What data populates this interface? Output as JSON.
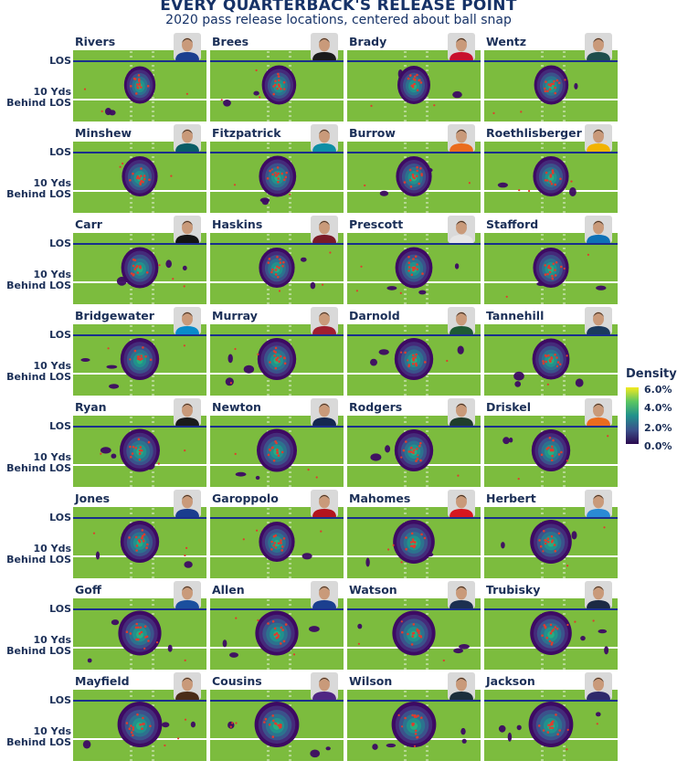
{
  "title": "EVERY QUARTERBACK'S RELEASE POINT",
  "subtitle": "2020 pass release locations, centered about ball snap",
  "row_labels": {
    "los": "LOS",
    "ten_yds_line1": "10 Yds",
    "ten_yds_line2": "Behind LOS"
  },
  "legend": {
    "title": "Density",
    "ticks": [
      "6.0%",
      "4.0%",
      "2.0%",
      "0.0%"
    ]
  },
  "colors": {
    "field": "#7cbc3e",
    "los_line": "#1a2f8c",
    "ten_line": "#ffffff",
    "density_low": "#3d0a63",
    "density_mid": "#21918c",
    "density_high": "#f3e91f",
    "points": "#e03b2e"
  },
  "chart_data": {
    "type": "density_small_multiples",
    "title": "EVERY QUARTERBACK'S RELEASE POINT",
    "subtitle": "2020 pass release locations, centered about ball snap",
    "y_reference_lines": [
      "LOS",
      "10 Yds Behind LOS"
    ],
    "legend_range_percent": [
      0.0,
      6.0
    ],
    "players": [
      {
        "name": "Rivers",
        "jersey": "#1b3f8f",
        "spread": 0.45,
        "offset": 0
      },
      {
        "name": "Brees",
        "jersey": "#1b1b1b",
        "spread": 0.55,
        "offset": 0.6
      },
      {
        "name": "Brady",
        "jersey": "#c8102e",
        "spread": 0.5,
        "offset": 0
      },
      {
        "name": "Wentz",
        "jersey": "#1f4e4c",
        "spread": 0.55,
        "offset": 0.1
      },
      {
        "name": "Minshew",
        "jersey": "#0a5c66",
        "spread": 0.6,
        "offset": 0
      },
      {
        "name": "Fitzpatrick",
        "jersey": "#0e8ea5",
        "spread": 0.65,
        "offset": 0.2
      },
      {
        "name": "Burrow",
        "jersey": "#ea6c1e",
        "spread": 0.6,
        "offset": 0
      },
      {
        "name": "Roethlisberger",
        "jersey": "#f2b300",
        "spread": 0.6,
        "offset": 0
      },
      {
        "name": "Carr",
        "jersey": "#141414",
        "spread": 0.65,
        "offset": 0
      },
      {
        "name": "Haskins",
        "jersey": "#7a1a28",
        "spread": 0.6,
        "offset": 0
      },
      {
        "name": "Prescott",
        "jersey": "#e6e6e6",
        "spread": 0.65,
        "offset": 0
      },
      {
        "name": "Stafford",
        "jersey": "#0e71b7",
        "spread": 0.6,
        "offset": 0
      },
      {
        "name": "Bridgewater",
        "jersey": "#0a8bc9",
        "spread": 0.7,
        "offset": 0
      },
      {
        "name": "Murray",
        "jersey": "#a01f2f",
        "spread": 0.7,
        "offset": 0
      },
      {
        "name": "Darnold",
        "jersey": "#1e5a35",
        "spread": 0.7,
        "offset": 0
      },
      {
        "name": "Tannehill",
        "jersey": "#1b3a5e",
        "spread": 0.65,
        "offset": 0
      },
      {
        "name": "Ryan",
        "jersey": "#1b1b1b",
        "spread": 0.75,
        "offset": 0
      },
      {
        "name": "Newton",
        "jersey": "#142850",
        "spread": 0.75,
        "offset": 0
      },
      {
        "name": "Rodgers",
        "jersey": "#1f3d2c",
        "spread": 0.7,
        "offset": 0
      },
      {
        "name": "Driskel",
        "jersey": "#ea6c1e",
        "spread": 0.7,
        "offset": 0
      },
      {
        "name": "Jones",
        "jersey": "#1a3d8e",
        "spread": 0.7,
        "offset": 0
      },
      {
        "name": "Garoppolo",
        "jersey": "#b3151d",
        "spread": 0.6,
        "offset": 0
      },
      {
        "name": "Mahomes",
        "jersey": "#d6171f",
        "spread": 0.8,
        "offset": 0
      },
      {
        "name": "Herbert",
        "jersey": "#2a8ad4",
        "spread": 0.8,
        "offset": 0
      },
      {
        "name": "Goff",
        "jersey": "#1b4f9e",
        "spread": 0.85,
        "offset": 0
      },
      {
        "name": "Allen",
        "jersey": "#1b3f8f",
        "spread": 0.85,
        "offset": 0
      },
      {
        "name": "Watson",
        "jersey": "#1c2f50",
        "spread": 0.85,
        "offset": 0
      },
      {
        "name": "Trubisky",
        "jersey": "#1c2a44",
        "spread": 0.8,
        "offset": 0
      },
      {
        "name": "Mayfield",
        "jersey": "#4a2c18",
        "spread": 0.9,
        "offset": 0
      },
      {
        "name": "Cousins",
        "jersey": "#4f2683",
        "spread": 0.9,
        "offset": 0
      },
      {
        "name": "Wilson",
        "jersey": "#1c2f3c",
        "spread": 0.9,
        "offset": 0
      },
      {
        "name": "Jackson",
        "jersey": "#2f2a6b",
        "spread": 0.9,
        "offset": 0
      }
    ]
  }
}
